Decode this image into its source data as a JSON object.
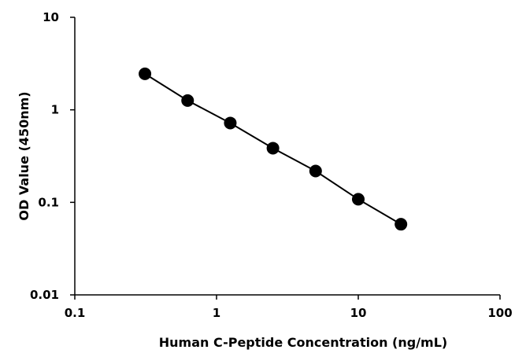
{
  "chart_data": {
    "type": "scatter",
    "title": "",
    "xlabel": "Human C-Peptide Concentration (ng/mL)",
    "ylabel": "OD Value (450nm)",
    "xscale": "log",
    "yscale": "log",
    "xlim": [
      0.1,
      100
    ],
    "ylim": [
      0.01,
      10
    ],
    "x_ticks": [
      0.1,
      1,
      10,
      100
    ],
    "x_tick_labels": [
      "0.1",
      "1",
      "10",
      "100"
    ],
    "y_ticks": [
      0.01,
      0.1,
      1,
      10
    ],
    "y_tick_labels": [
      "0.01",
      "0.1",
      "1",
      "10"
    ],
    "grid": false,
    "legend": "none",
    "series": [
      {
        "x": [
          0.3125,
          0.625,
          1.25,
          2.5,
          5,
          10,
          20
        ],
        "y": [
          2.45,
          1.26,
          0.72,
          0.385,
          0.218,
          0.108,
          0.058
        ],
        "color": "#000000",
        "marker": "circle",
        "line": true
      }
    ]
  }
}
